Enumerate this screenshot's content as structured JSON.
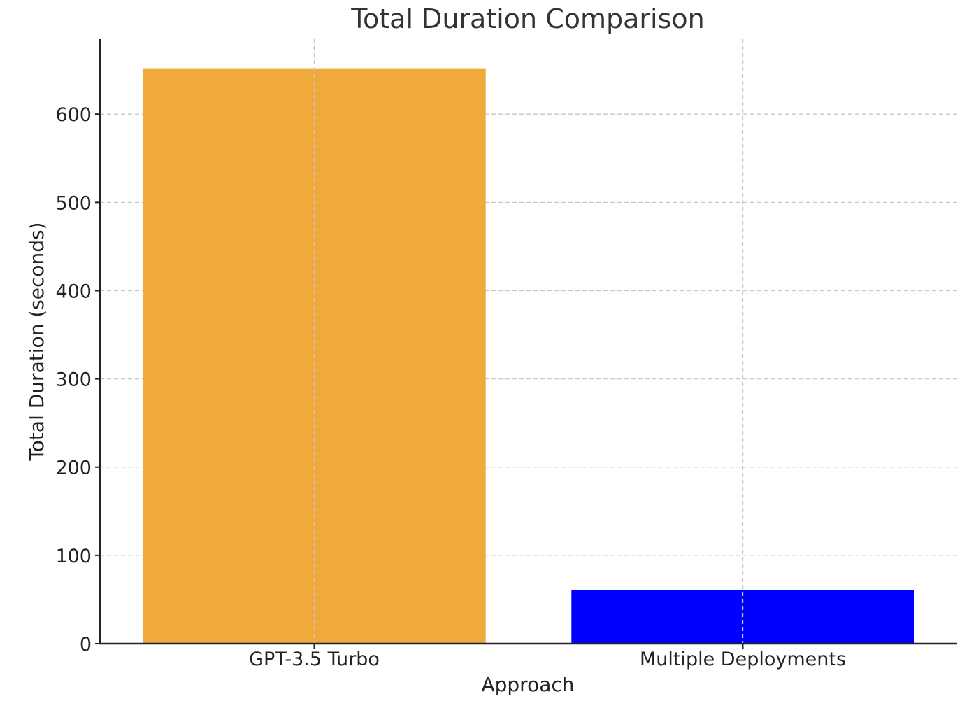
{
  "chart_data": {
    "type": "bar",
    "title": "Total Duration Comparison",
    "xlabel": "Approach",
    "ylabel": "Total Duration (seconds)",
    "categories": [
      "GPT-3.5 Turbo",
      "Multiple Deployments"
    ],
    "values": [
      652,
      61
    ],
    "colors": [
      "#f0a93b",
      "#0000ff"
    ],
    "ylim": [
      0,
      685
    ],
    "yticks": [
      0,
      100,
      200,
      300,
      400,
      500,
      600
    ],
    "ytick_labels": [
      "0",
      "100",
      "200",
      "300",
      "400",
      "500",
      "600"
    ],
    "grid": true,
    "legend": "none"
  }
}
